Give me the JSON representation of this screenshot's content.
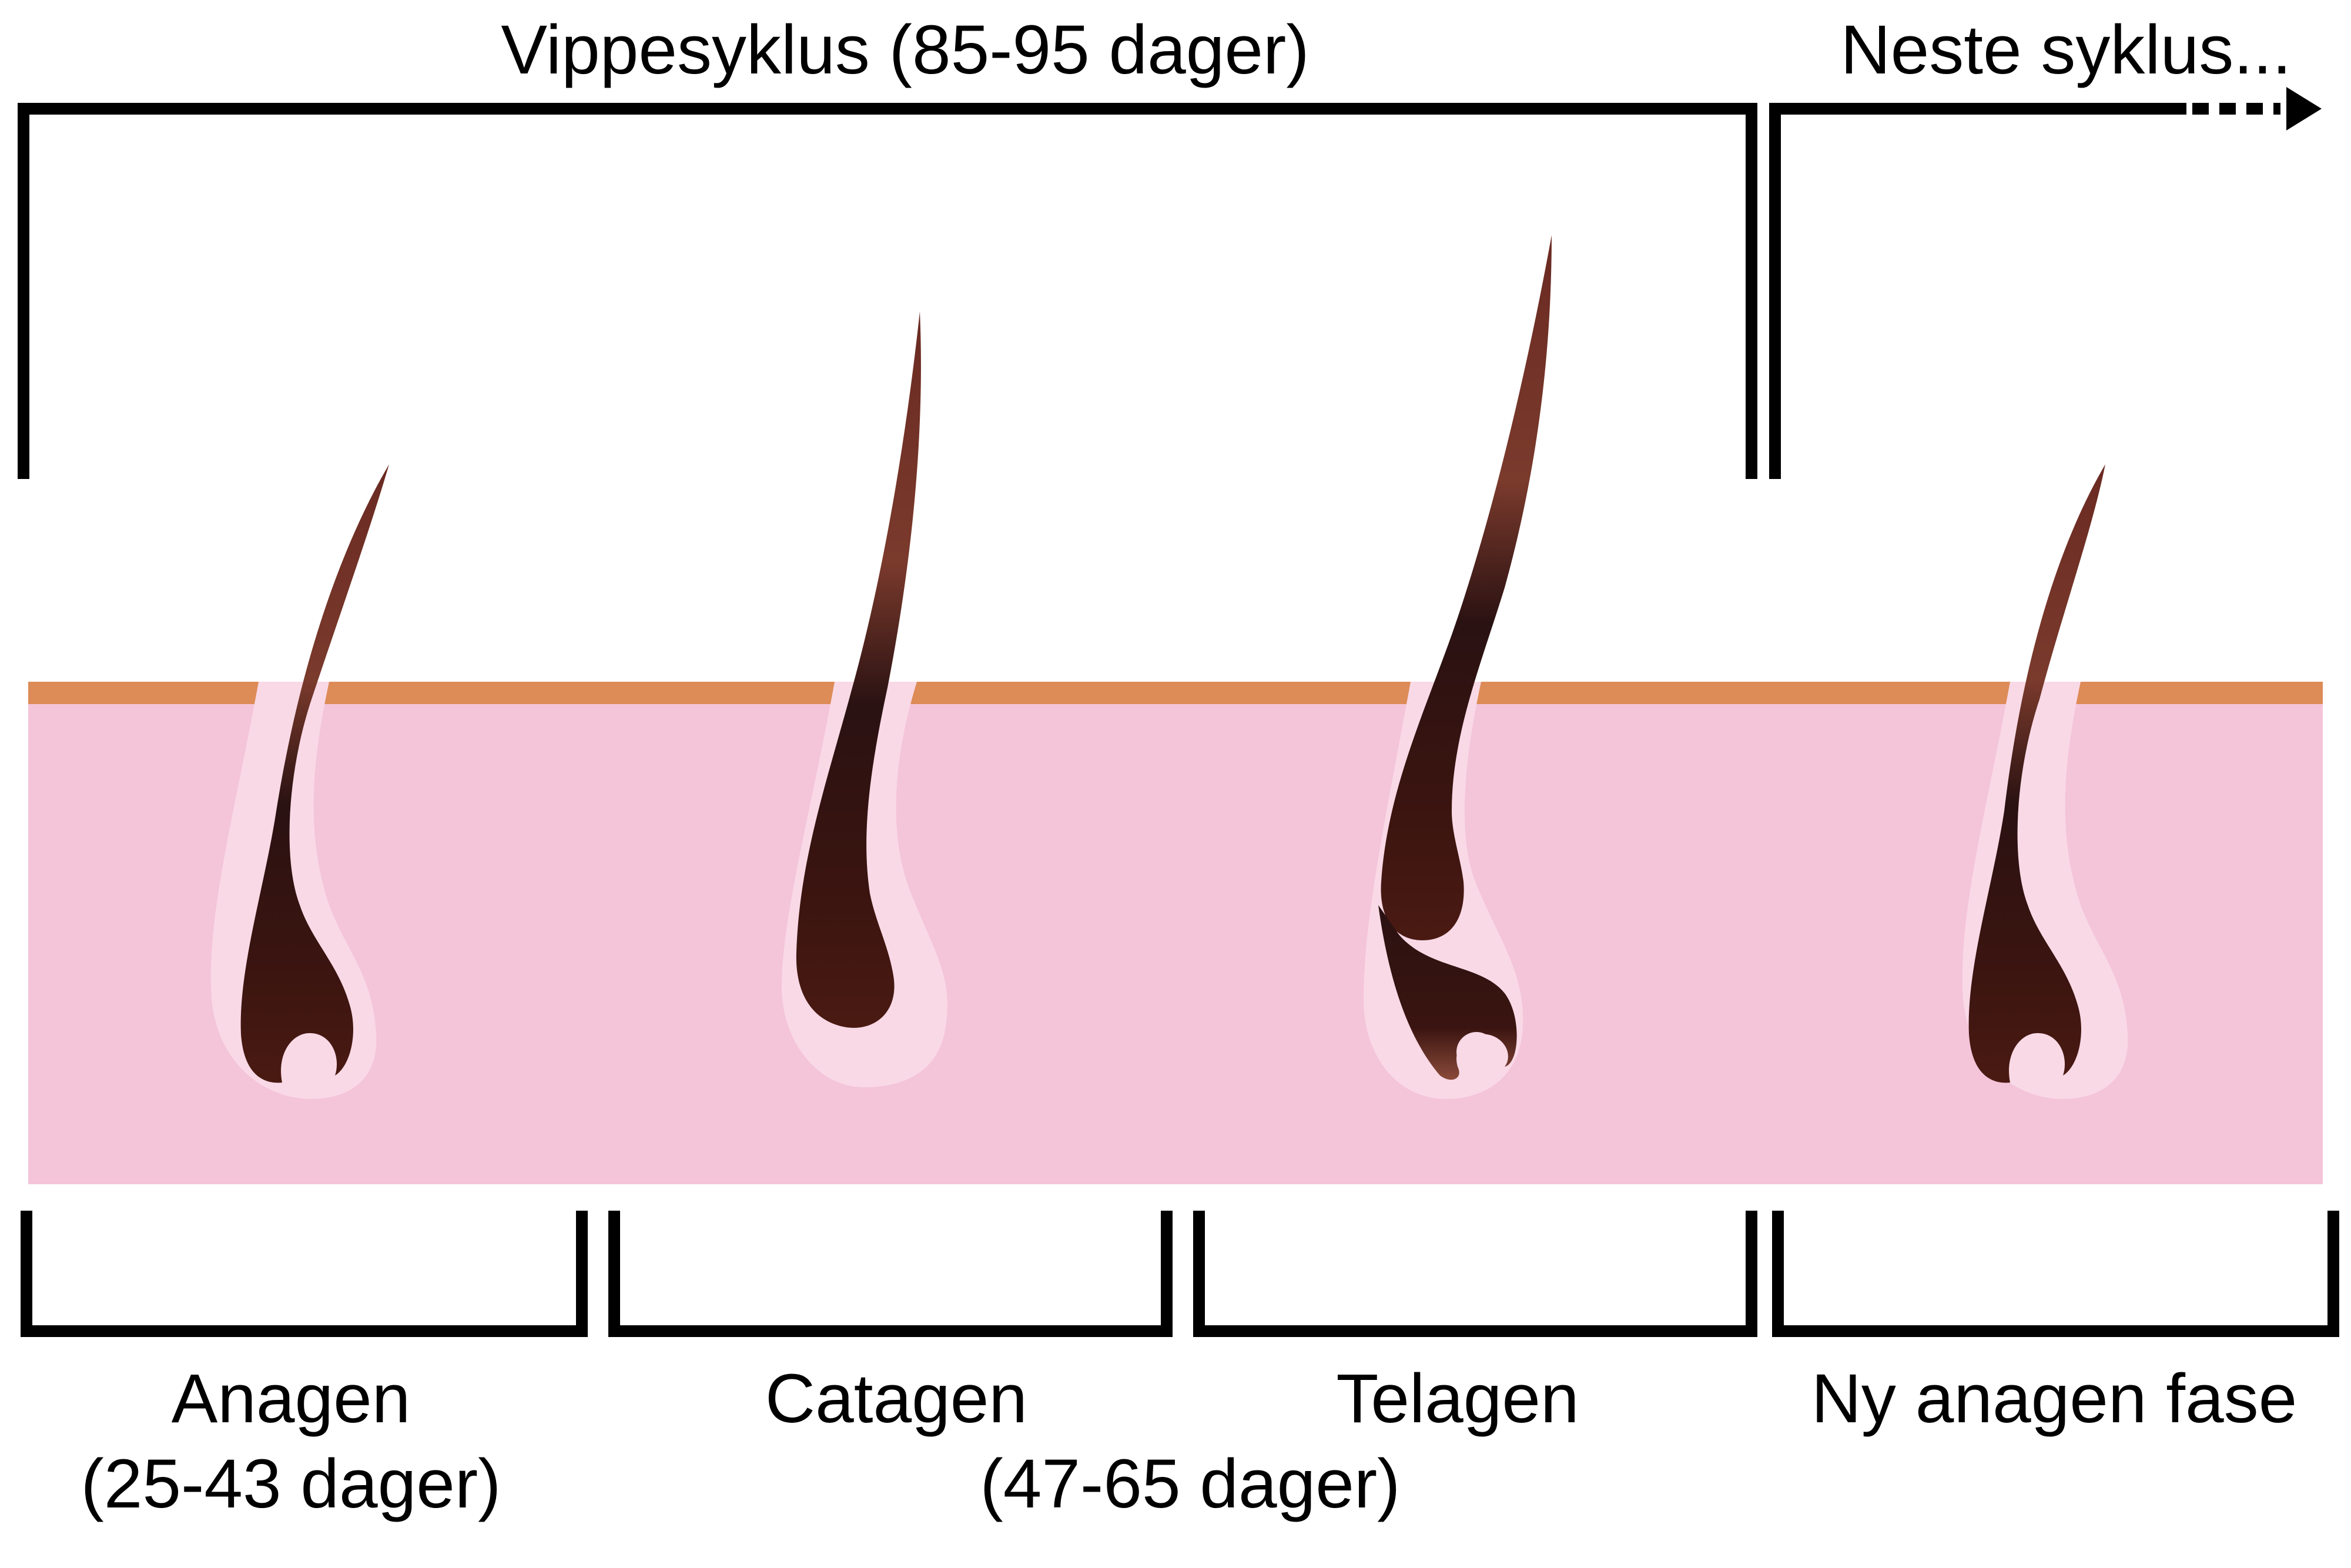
{
  "cycle": {
    "title": "Vippesyklus (85-95 dager)",
    "next": "Neste syklus..."
  },
  "phases": [
    {
      "name": "Anagen",
      "duration": "(25-43 dager)"
    },
    {
      "name": "Catagen",
      "duration": ""
    },
    {
      "name": "Telagen",
      "duration": ""
    },
    {
      "name": "Ny anagen fase",
      "duration": ""
    }
  ],
  "shared_duration": "(47-65 dager)",
  "colors": {
    "skin": "#f4c4d9",
    "skin_surface": "#dd8b57",
    "follicle": "#f9d9e6",
    "hair_dark": "#2a1212",
    "hair_mid": "#4a1a12",
    "hair_light": "#7a3a2c",
    "bracket": "#000000"
  }
}
